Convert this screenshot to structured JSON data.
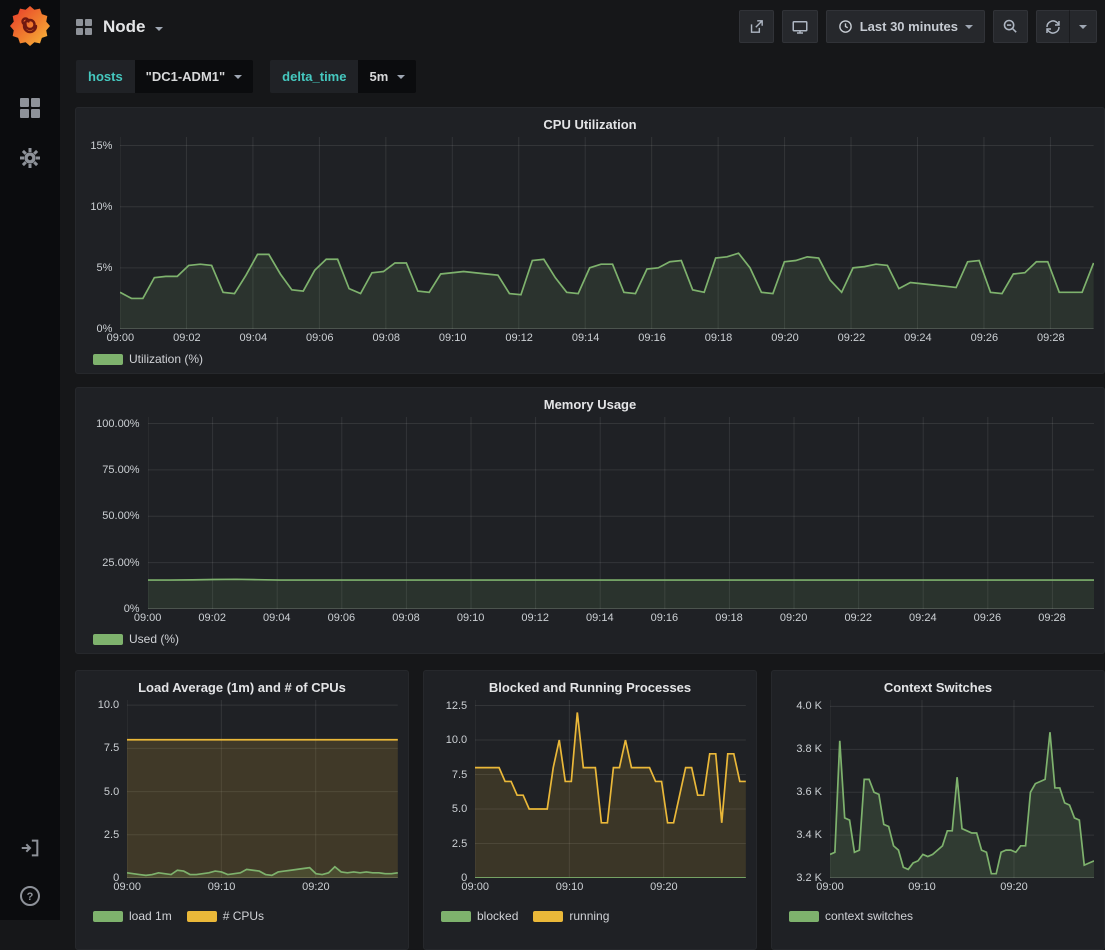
{
  "header": {
    "title": "Node",
    "time_range": "Last 30 minutes"
  },
  "sidebar": {
    "icons": [
      "grafana-logo",
      "dashboards",
      "configuration",
      "sign-in",
      "help"
    ]
  },
  "variables": [
    {
      "label": "hosts",
      "value": "\"DC1-ADM1\""
    },
    {
      "label": "delta_time",
      "value": "5m"
    }
  ],
  "colors": {
    "series_green": "#7EB26D",
    "series_yellow": "#EAB839",
    "variable_label": "#45c8bf",
    "panel_bg": "#1f2125",
    "page_bg": "#161719"
  },
  "chart_data": [
    {
      "id": "cpu-utilization",
      "type": "area",
      "title": "CPU Utilization",
      "ylim": [
        0,
        15.7
      ],
      "x_total_min": 29.3,
      "yticks": [
        {
          "label": "0%",
          "value": 0
        },
        {
          "label": "5%",
          "value": 5
        },
        {
          "label": "10%",
          "value": 10
        },
        {
          "label": "15%",
          "value": 15
        }
      ],
      "xticks": [
        {
          "label": "09:00",
          "min": 0
        },
        {
          "label": "09:02",
          "min": 2
        },
        {
          "label": "09:04",
          "min": 4
        },
        {
          "label": "09:06",
          "min": 6
        },
        {
          "label": "09:08",
          "min": 8
        },
        {
          "label": "09:10",
          "min": 10
        },
        {
          "label": "09:12",
          "min": 12
        },
        {
          "label": "09:14",
          "min": 14
        },
        {
          "label": "09:16",
          "min": 16
        },
        {
          "label": "09:18",
          "min": 18
        },
        {
          "label": "09:20",
          "min": 20
        },
        {
          "label": "09:22",
          "min": 22
        },
        {
          "label": "09:24",
          "min": 24
        },
        {
          "label": "09:26",
          "min": 26
        },
        {
          "label": "09:28",
          "min": 28
        }
      ],
      "series": [
        {
          "name": "Utilization (%)",
          "color": "#7EB26D",
          "fill": "rgba(126,178,109,0.13)",
          "values": [
            3.0,
            2.5,
            2.5,
            4.2,
            4.3,
            4.3,
            5.2,
            5.3,
            5.2,
            3.0,
            2.9,
            4.4,
            6.1,
            6.1,
            4.5,
            3.2,
            3.1,
            4.8,
            5.7,
            5.7,
            3.3,
            2.9,
            4.6,
            4.7,
            5.4,
            5.4,
            3.1,
            3.0,
            4.5,
            4.6,
            4.7,
            4.6,
            4.5,
            4.4,
            2.9,
            2.8,
            5.6,
            5.7,
            4.2,
            3.0,
            2.9,
            5.0,
            5.3,
            5.3,
            3.0,
            2.9,
            4.9,
            5.0,
            5.5,
            5.6,
            3.2,
            3.0,
            5.8,
            5.9,
            6.2,
            5.0,
            3.0,
            2.9,
            5.5,
            5.6,
            5.9,
            5.8,
            4.0,
            3.0,
            5.0,
            5.1,
            5.3,
            5.2,
            3.3,
            3.8,
            3.7,
            3.6,
            3.5,
            3.4,
            5.5,
            5.6,
            3.0,
            2.9,
            4.5,
            4.6,
            5.5,
            5.5,
            3.0,
            3.0,
            3.0,
            5.4
          ]
        }
      ]
    },
    {
      "id": "memory-usage",
      "type": "area",
      "title": "Memory Usage",
      "ylim": [
        0,
        103.5
      ],
      "x_total_min": 29.3,
      "yticks": [
        {
          "label": "0%",
          "value": 0
        },
        {
          "label": "25.00%",
          "value": 25
        },
        {
          "label": "50.00%",
          "value": 50
        },
        {
          "label": "75.00%",
          "value": 75
        },
        {
          "label": "100.00%",
          "value": 100
        }
      ],
      "xticks": [
        {
          "label": "09:00",
          "min": 0
        },
        {
          "label": "09:02",
          "min": 2
        },
        {
          "label": "09:04",
          "min": 4
        },
        {
          "label": "09:06",
          "min": 6
        },
        {
          "label": "09:08",
          "min": 8
        },
        {
          "label": "09:10",
          "min": 10
        },
        {
          "label": "09:12",
          "min": 12
        },
        {
          "label": "09:14",
          "min": 14
        },
        {
          "label": "09:16",
          "min": 16
        },
        {
          "label": "09:18",
          "min": 18
        },
        {
          "label": "09:20",
          "min": 20
        },
        {
          "label": "09:22",
          "min": 22
        },
        {
          "label": "09:24",
          "min": 24
        },
        {
          "label": "09:26",
          "min": 26
        },
        {
          "label": "09:28",
          "min": 28
        }
      ],
      "series": [
        {
          "name": "Used (%)",
          "color": "#7EB26D",
          "fill": "rgba(126,178,109,0.12)",
          "values": [
            15.6,
            15.6,
            15.7,
            15.9,
            16.0,
            15.8,
            15.6,
            15.6,
            15.6,
            15.6,
            15.6,
            15.6,
            15.6,
            15.6,
            15.6,
            15.6,
            15.6,
            15.6,
            15.6,
            15.6,
            15.6,
            15.6,
            15.6,
            15.6,
            15.6,
            15.6,
            15.6,
            15.6,
            15.6,
            15.6,
            15.6,
            15.6,
            15.6,
            15.6,
            15.6,
            15.6,
            15.6,
            15.6,
            15.6,
            15.6,
            15.6,
            15.6,
            15.6,
            15.6
          ]
        }
      ]
    },
    {
      "id": "load-average",
      "type": "area",
      "title": "Load Average (1m) and # of CPUs",
      "ylim": [
        0,
        10.3
      ],
      "x_total_min": 28.7,
      "yticks": [
        {
          "label": "0",
          "value": 0
        },
        {
          "label": "2.5",
          "value": 2.5
        },
        {
          "label": "5.0",
          "value": 5
        },
        {
          "label": "7.5",
          "value": 7.5
        },
        {
          "label": "10.0",
          "value": 10
        }
      ],
      "xticks": [
        {
          "label": "09:00",
          "min": 0
        },
        {
          "label": "09:10",
          "min": 10
        },
        {
          "label": "09:20",
          "min": 20
        }
      ],
      "series": [
        {
          "name": "load 1m",
          "color": "#7EB26D",
          "fill": "rgba(126,178,109,0.15)",
          "values": [
            0.3,
            0.25,
            0.2,
            0.15,
            0.2,
            0.3,
            0.25,
            0.2,
            0.45,
            0.4,
            0.2,
            0.2,
            0.25,
            0.3,
            0.4,
            0.35,
            0.2,
            0.25,
            0.3,
            0.5,
            0.45,
            0.4,
            0.2,
            0.15,
            0.35,
            0.4,
            0.45,
            0.5,
            0.55,
            0.6,
            0.25,
            0.2,
            0.3,
            0.65,
            0.35,
            0.3,
            0.35,
            0.3,
            0.35,
            0.3,
            0.3,
            0.25,
            0.25,
            0.3
          ]
        },
        {
          "name": "# CPUs",
          "color": "#EAB839",
          "fill": "rgba(234,184,57,0.16)",
          "const": 8,
          "points": 44
        }
      ]
    },
    {
      "id": "blocked-running",
      "type": "line",
      "title": "Blocked and Running Processes",
      "ylim": [
        0,
        12.9
      ],
      "x_total_min": 28.7,
      "yticks": [
        {
          "label": "0",
          "value": 0
        },
        {
          "label": "2.5",
          "value": 2.5
        },
        {
          "label": "5.0",
          "value": 5
        },
        {
          "label": "7.5",
          "value": 7.5
        },
        {
          "label": "10.0",
          "value": 10
        },
        {
          "label": "12.5",
          "value": 12.5
        }
      ],
      "xticks": [
        {
          "label": "09:00",
          "min": 0
        },
        {
          "label": "09:10",
          "min": 10
        },
        {
          "label": "09:20",
          "min": 20
        }
      ],
      "series": [
        {
          "name": "blocked",
          "color": "#7EB26D",
          "const": 0,
          "points": 46
        },
        {
          "name": "running",
          "color": "#EAB839",
          "fill": "rgba(234,184,57,0.14)",
          "values": [
            8,
            8,
            8,
            8,
            8,
            7,
            7,
            6,
            6,
            5,
            5,
            5,
            5,
            8,
            10,
            7,
            7,
            12,
            8,
            8,
            8,
            4,
            4,
            8,
            8,
            10,
            8,
            8,
            8,
            8,
            7,
            7,
            4,
            4,
            6,
            8,
            8,
            6,
            6,
            9,
            9,
            4,
            9,
            9,
            7,
            7
          ]
        }
      ]
    },
    {
      "id": "context-switches",
      "type": "area",
      "title": "Context Switches",
      "ylim": [
        3.2,
        4.03
      ],
      "x_total_min": 28.7,
      "yticks": [
        {
          "label": "3.2 K",
          "value": 3.2
        },
        {
          "label": "3.4 K",
          "value": 3.4
        },
        {
          "label": "3.6 K",
          "value": 3.6
        },
        {
          "label": "3.8 K",
          "value": 3.8
        },
        {
          "label": "4.0 K",
          "value": 4.0
        }
      ],
      "xticks": [
        {
          "label": "09:00",
          "min": 0
        },
        {
          "label": "09:10",
          "min": 10
        },
        {
          "label": "09:20",
          "min": 20
        }
      ],
      "series": [
        {
          "name": "context switches",
          "color": "#7EB26D",
          "fill": "rgba(126,178,109,0.18)",
          "values": [
            3.31,
            3.32,
            3.84,
            3.48,
            3.47,
            3.32,
            3.33,
            3.66,
            3.66,
            3.6,
            3.59,
            3.45,
            3.44,
            3.35,
            3.33,
            3.25,
            3.24,
            3.27,
            3.28,
            3.31,
            3.3,
            3.31,
            3.33,
            3.35,
            3.42,
            3.42,
            3.67,
            3.43,
            3.42,
            3.41,
            3.41,
            3.33,
            3.32,
            3.22,
            3.22,
            3.32,
            3.33,
            3.33,
            3.32,
            3.35,
            3.35,
            3.6,
            3.64,
            3.65,
            3.66,
            3.88,
            3.62,
            3.62,
            3.55,
            3.54,
            3.48,
            3.47,
            3.26,
            3.27,
            3.28
          ]
        }
      ]
    }
  ]
}
